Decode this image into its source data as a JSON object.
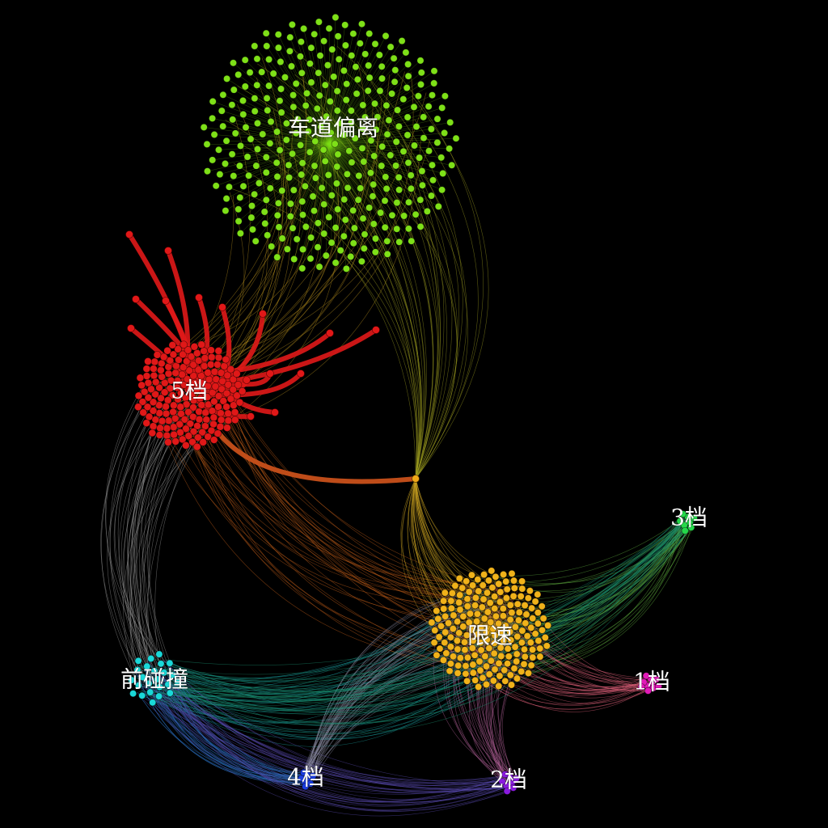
{
  "clusters": [
    {
      "id": "lane",
      "label": "车道偏离",
      "color": "#7ee018",
      "nodes": 330,
      "labelColor": "#ffffff"
    },
    {
      "id": "gear5",
      "label": "5档",
      "color": "#e01818",
      "nodes": 180,
      "labelColor": "#ffffff"
    },
    {
      "id": "speed",
      "label": "限速",
      "color": "#f0b21a",
      "nodes": 190,
      "labelColor": "#ffffff"
    },
    {
      "id": "gear3",
      "label": "3档",
      "color": "#25d84a",
      "nodes": 8,
      "labelColor": "#ffffff"
    },
    {
      "id": "gear1",
      "label": "1档",
      "color": "#e21ab8",
      "nodes": 10,
      "labelColor": "#ffffff"
    },
    {
      "id": "front",
      "label": "前碰撞",
      "color": "#1ad8d8",
      "nodes": 24,
      "labelColor": "#ffffff"
    },
    {
      "id": "gear4",
      "label": "4档",
      "color": "#1a3ce0",
      "nodes": 8,
      "labelColor": "#ffffff"
    },
    {
      "id": "gear2",
      "label": "2档",
      "color": "#8a1ae0",
      "nodes": 8,
      "labelColor": "#ffffff"
    }
  ],
  "hub": {
    "color": "#f0a818"
  },
  "edges": [
    {
      "from": "gear5",
      "to": "lane",
      "color": "#b8901e"
    },
    {
      "from": "hub",
      "to": "lane",
      "color": "#a0a020"
    },
    {
      "from": "gear5",
      "to": "speed",
      "color": "#c8601a"
    },
    {
      "from": "hub",
      "to": "speed",
      "color": "#c8a020"
    },
    {
      "from": "gear5",
      "to": "front",
      "color": "#9a9a9a"
    },
    {
      "from": "front",
      "to": "speed",
      "color": "#1aa0a0"
    },
    {
      "from": "front",
      "to": "gear4",
      "color": "#2a70c0"
    },
    {
      "from": "front",
      "to": "gear2",
      "color": "#5a4ab0"
    },
    {
      "from": "speed",
      "to": "gear3",
      "color": "#60b040"
    },
    {
      "from": "speed",
      "to": "gear1",
      "color": "#e0607a"
    },
    {
      "from": "speed",
      "to": "gear2",
      "color": "#b06098"
    },
    {
      "from": "speed",
      "to": "gear4",
      "color": "#8a8aa0"
    },
    {
      "from": "front",
      "to": "gear3",
      "color": "#1a9070"
    }
  ]
}
